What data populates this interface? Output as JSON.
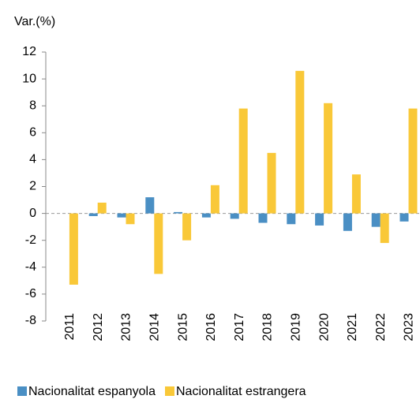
{
  "chart_data": {
    "type": "bar",
    "y_axis_label": "Var.(%)",
    "categories": [
      "2011",
      "2012",
      "2013",
      "2014",
      "2015",
      "2016",
      "2017",
      "2018",
      "2019",
      "2020",
      "2021",
      "2022",
      "2023"
    ],
    "series": [
      {
        "name": "Nacionalitat espanyola",
        "color": "#4a8fc4",
        "values": [
          0.0,
          -0.2,
          -0.3,
          1.2,
          0.1,
          -0.3,
          -0.4,
          -0.7,
          -0.8,
          -0.9,
          -1.3,
          -1.0,
          -0.6
        ]
      },
      {
        "name": "Nacionalitat estrangera",
        "color": "#f9c838",
        "values": [
          -5.3,
          0.8,
          -0.8,
          -4.5,
          -2.0,
          2.1,
          7.8,
          4.5,
          10.6,
          8.2,
          2.9,
          -2.2,
          7.8
        ]
      }
    ],
    "ylim": [
      -8,
      12
    ],
    "yticks": [
      -8,
      -6,
      -4,
      -2,
      0,
      2,
      4,
      6,
      8,
      10,
      12
    ],
    "legend": "bottom"
  }
}
